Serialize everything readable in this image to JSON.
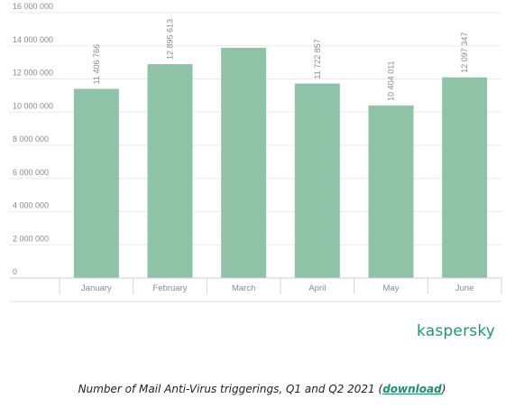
{
  "chart_data": {
    "type": "bar",
    "categories": [
      "January",
      "February",
      "March",
      "April",
      "May",
      "June"
    ],
    "values": [
      11406766,
      12895613,
      13880000,
      11722857,
      10404011,
      12097347
    ],
    "data_labels": [
      "11 406 766",
      "12 895 613",
      "",
      "11 722 857",
      "10 404 011",
      "12 097 347"
    ],
    "ylim": [
      0,
      16000000
    ],
    "yticks": [
      "0",
      "2 000 000",
      "4 000 000",
      "6 000 000",
      "8 000 000",
      "10 000 000",
      "12 000 000",
      "14 000 000",
      "16 000 000"
    ],
    "grid": true,
    "bar_color": "#8fc3a7"
  },
  "brand": {
    "logo_text": "kaspersky",
    "color": "#1a9a73"
  },
  "caption": {
    "text": "Number of Mail Anti-Virus triggerings, Q1 and Q2 2021 (",
    "link": "download",
    "close": ")"
  }
}
